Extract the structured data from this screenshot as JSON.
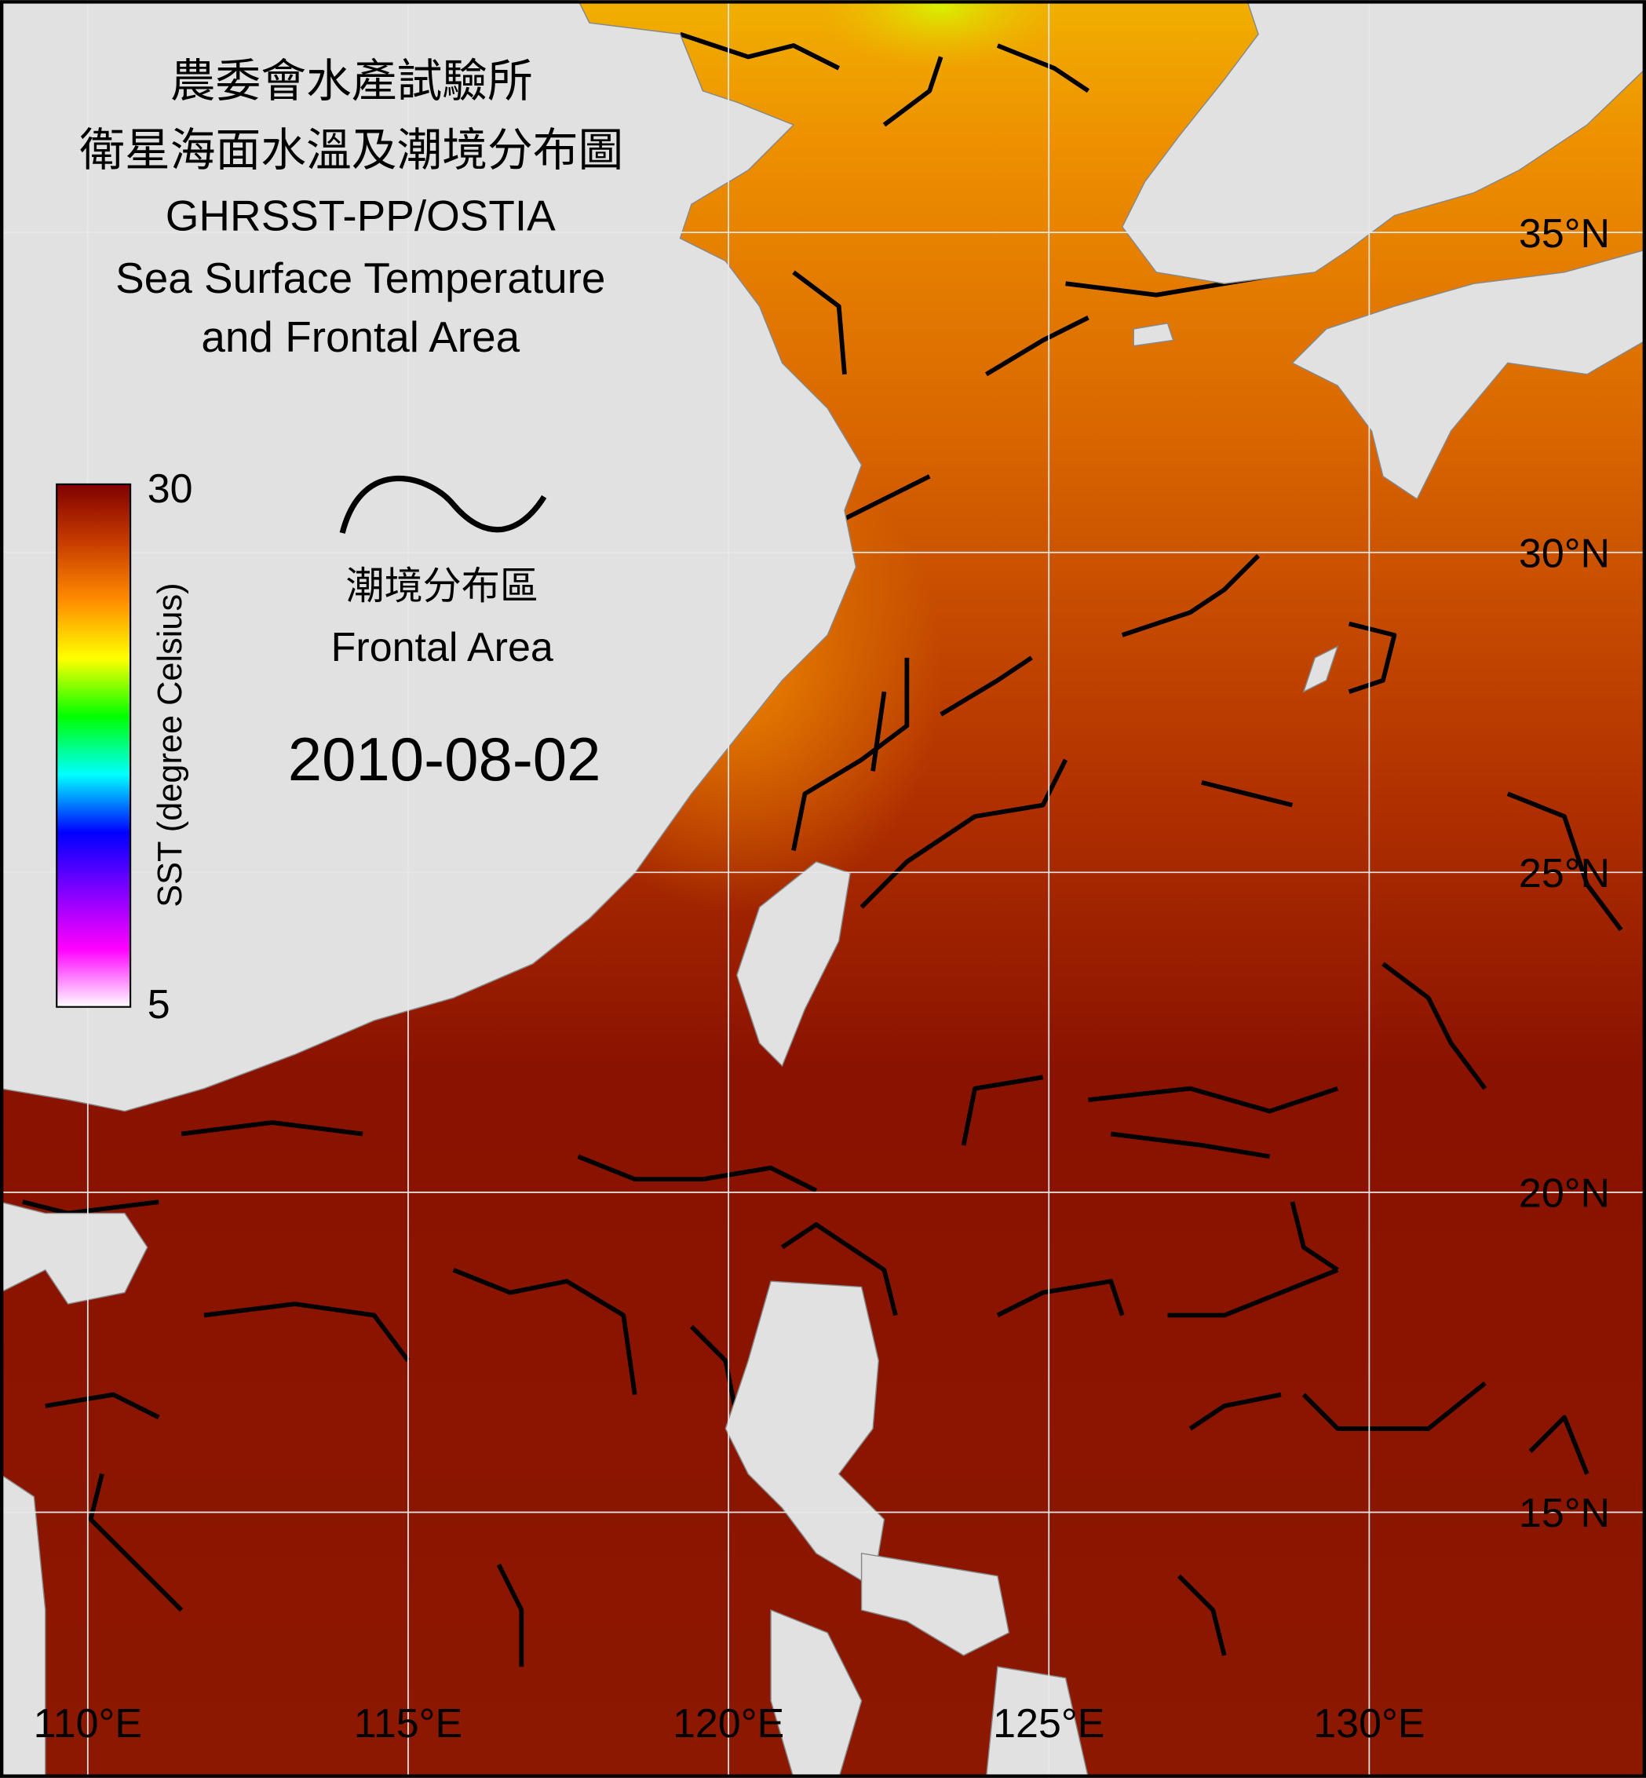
{
  "header": {
    "title_lines": [
      "農委會水產試驗所",
      "衛星海面水溫及潮境分布圖",
      "GHRSST-PP/OSTIA",
      "Sea Surface Temperature",
      "and Frontal Area"
    ]
  },
  "legend": {
    "front_label_zh": "潮境分布區",
    "front_label_en": "Frontal Area"
  },
  "date": "2010-08-02",
  "colorbar": {
    "label": "SST (degree Celsius)",
    "min": 5,
    "max": 30,
    "colors": [
      "#ffffff",
      "#ff00ff",
      "#8000ff",
      "#0000ff",
      "#00ffff",
      "#00ff00",
      "#ffff00",
      "#ff8c00",
      "#c83c00",
      "#800000"
    ]
  },
  "map": {
    "xlim": [
      108.63,
      134.32
    ],
    "ylim": [
      10.85,
      38.63
    ],
    "xticks": [
      {
        "value": 110,
        "label": "110°E"
      },
      {
        "value": 115,
        "label": "115°E"
      },
      {
        "value": 120,
        "label": "120°E"
      },
      {
        "value": 125,
        "label": "125°E"
      },
      {
        "value": 130,
        "label": "130°E"
      }
    ],
    "yticks": [
      {
        "value": 15,
        "label": "15°N"
      },
      {
        "value": 20,
        "label": "20°N"
      },
      {
        "value": 25,
        "label": "25°N"
      },
      {
        "value": 30,
        "label": "30°N"
      },
      {
        "value": 35,
        "label": "35°N"
      }
    ]
  }
}
